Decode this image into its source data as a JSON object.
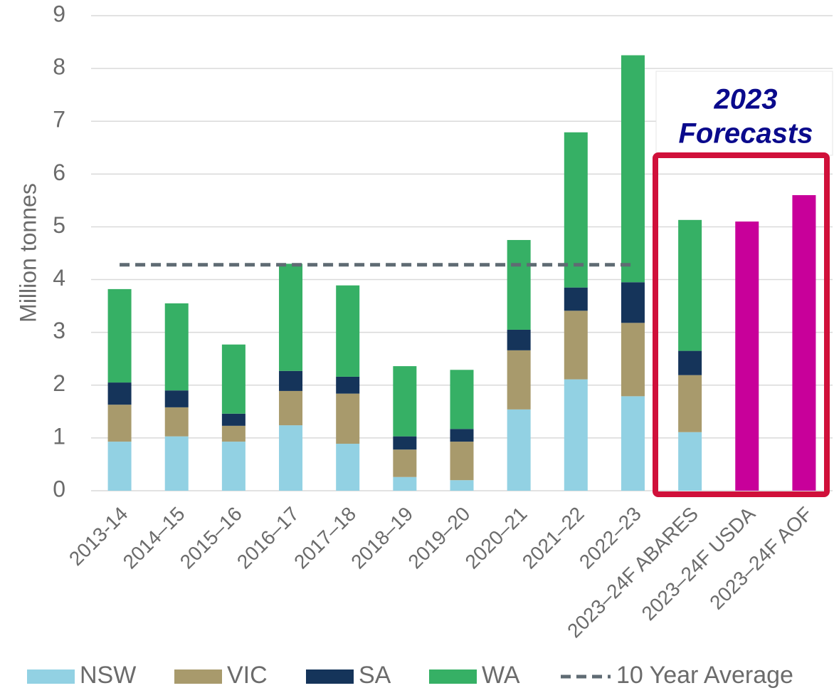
{
  "chart_data": {
    "type": "bar",
    "stacked": true,
    "y_label": "Million tonnes",
    "categories": [
      "2013-14",
      "2014–15",
      "2015–16",
      "2016–17",
      "2017–18",
      "2018–19",
      "2019–20",
      "2020–21",
      "2021–22",
      "2022–23",
      "2023–24F ABARES",
      "2023–24F USDA",
      "2023–24F AOF"
    ],
    "series": [
      {
        "name": "NSW",
        "color": "#92d1e3",
        "values": [
          0.93,
          1.03,
          0.93,
          1.24,
          0.89,
          0.26,
          0.2,
          1.54,
          2.11,
          1.79,
          1.11,
          null,
          null
        ]
      },
      {
        "name": "VIC",
        "color": "#a89a6c",
        "values": [
          0.7,
          0.55,
          0.3,
          0.65,
          0.95,
          0.52,
          0.73,
          1.12,
          1.3,
          1.39,
          1.08,
          null,
          null
        ]
      },
      {
        "name": "SA",
        "color": "#15345a",
        "values": [
          0.42,
          0.32,
          0.23,
          0.38,
          0.32,
          0.25,
          0.24,
          0.39,
          0.44,
          0.77,
          0.46,
          null,
          null
        ]
      },
      {
        "name": "WA",
        "color": "#36b065",
        "values": [
          1.77,
          1.65,
          1.31,
          2.03,
          1.73,
          1.33,
          1.12,
          1.7,
          2.94,
          4.3,
          2.48,
          null,
          null
        ]
      },
      {
        "color": "#c8009a",
        "values": [
          null,
          null,
          null,
          null,
          null,
          null,
          null,
          null,
          null,
          null,
          null,
          5.1,
          5.6
        ]
      }
    ],
    "reference_line": {
      "name": "10 Year Average",
      "value": 4.28,
      "color": "#5f6b73",
      "x": [
        "2013-14",
        "2022–23"
      ]
    },
    "annotations": [
      "2023",
      "Forecasts"
    ],
    "ylim": [
      0,
      9
    ],
    "yticks": [
      0,
      1,
      2,
      3,
      4,
      5,
      6,
      7,
      8,
      9
    ],
    "grid": true,
    "legend": "bottom"
  }
}
